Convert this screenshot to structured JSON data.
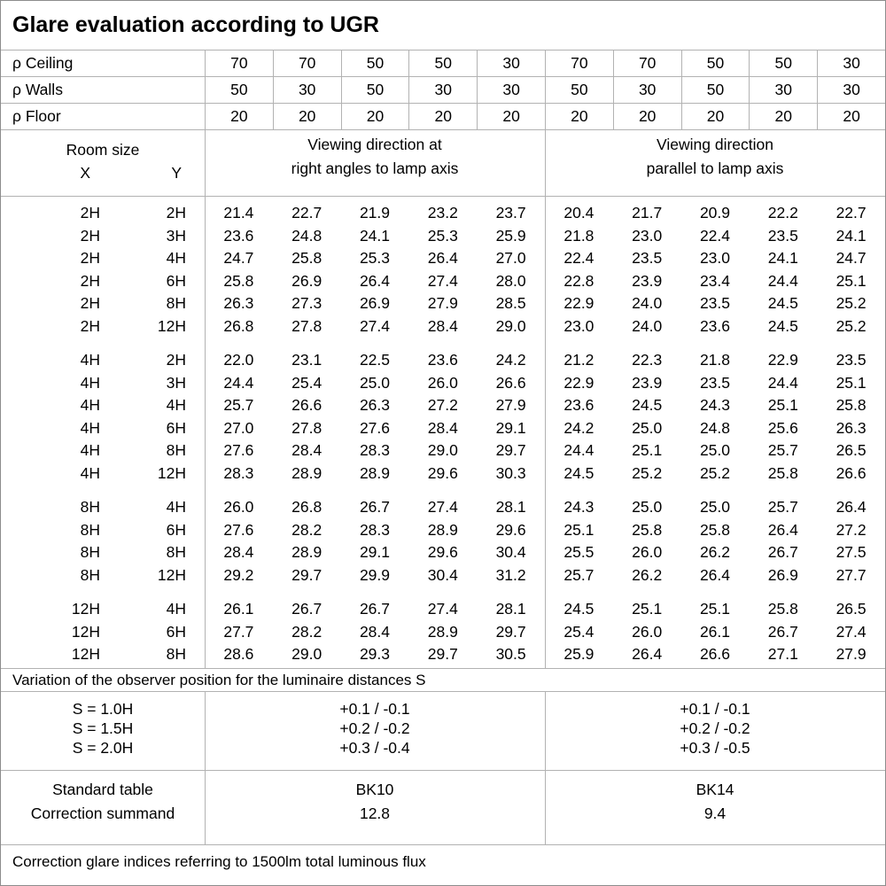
{
  "title": "Glare evaluation according to UGR",
  "reflectance_rows": [
    {
      "label": "ρ Ceiling",
      "values": [
        "70",
        "70",
        "50",
        "50",
        "30",
        "70",
        "70",
        "50",
        "50",
        "30"
      ]
    },
    {
      "label": "ρ Walls",
      "values": [
        "50",
        "30",
        "50",
        "30",
        "30",
        "50",
        "30",
        "50",
        "30",
        "30"
      ]
    },
    {
      "label": "ρ Floor",
      "values": [
        "20",
        "20",
        "20",
        "20",
        "20",
        "20",
        "20",
        "20",
        "20",
        "20"
      ]
    }
  ],
  "room_size_header": {
    "title": "Room size",
    "x": "X",
    "y": "Y"
  },
  "viewing_headers": {
    "right_angle": {
      "line1": "Viewing direction at",
      "line2": "right angles to lamp axis"
    },
    "parallel": {
      "line1": "Viewing direction",
      "line2": "parallel to lamp axis"
    }
  },
  "data_groups": [
    {
      "rows": [
        {
          "x": "2H",
          "y": "2H",
          "right_angle": [
            "21.4",
            "22.7",
            "21.9",
            "23.2",
            "23.7"
          ],
          "parallel": [
            "20.4",
            "21.7",
            "20.9",
            "22.2",
            "22.7"
          ]
        },
        {
          "x": "2H",
          "y": "3H",
          "right_angle": [
            "23.6",
            "24.8",
            "24.1",
            "25.3",
            "25.9"
          ],
          "parallel": [
            "21.8",
            "23.0",
            "22.4",
            "23.5",
            "24.1"
          ]
        },
        {
          "x": "2H",
          "y": "4H",
          "right_angle": [
            "24.7",
            "25.8",
            "25.3",
            "26.4",
            "27.0"
          ],
          "parallel": [
            "22.4",
            "23.5",
            "23.0",
            "24.1",
            "24.7"
          ]
        },
        {
          "x": "2H",
          "y": "6H",
          "right_angle": [
            "25.8",
            "26.9",
            "26.4",
            "27.4",
            "28.0"
          ],
          "parallel": [
            "22.8",
            "23.9",
            "23.4",
            "24.4",
            "25.1"
          ]
        },
        {
          "x": "2H",
          "y": "8H",
          "right_angle": [
            "26.3",
            "27.3",
            "26.9",
            "27.9",
            "28.5"
          ],
          "parallel": [
            "22.9",
            "24.0",
            "23.5",
            "24.5",
            "25.2"
          ]
        },
        {
          "x": "2H",
          "y": "12H",
          "right_angle": [
            "26.8",
            "27.8",
            "27.4",
            "28.4",
            "29.0"
          ],
          "parallel": [
            "23.0",
            "24.0",
            "23.6",
            "24.5",
            "25.2"
          ]
        }
      ]
    },
    {
      "rows": [
        {
          "x": "4H",
          "y": "2H",
          "right_angle": [
            "22.0",
            "23.1",
            "22.5",
            "23.6",
            "24.2"
          ],
          "parallel": [
            "21.2",
            "22.3",
            "21.8",
            "22.9",
            "23.5"
          ]
        },
        {
          "x": "4H",
          "y": "3H",
          "right_angle": [
            "24.4",
            "25.4",
            "25.0",
            "26.0",
            "26.6"
          ],
          "parallel": [
            "22.9",
            "23.9",
            "23.5",
            "24.4",
            "25.1"
          ]
        },
        {
          "x": "4H",
          "y": "4H",
          "right_angle": [
            "25.7",
            "26.6",
            "26.3",
            "27.2",
            "27.9"
          ],
          "parallel": [
            "23.6",
            "24.5",
            "24.3",
            "25.1",
            "25.8"
          ]
        },
        {
          "x": "4H",
          "y": "6H",
          "right_angle": [
            "27.0",
            "27.8",
            "27.6",
            "28.4",
            "29.1"
          ],
          "parallel": [
            "24.2",
            "25.0",
            "24.8",
            "25.6",
            "26.3"
          ]
        },
        {
          "x": "4H",
          "y": "8H",
          "right_angle": [
            "27.6",
            "28.4",
            "28.3",
            "29.0",
            "29.7"
          ],
          "parallel": [
            "24.4",
            "25.1",
            "25.0",
            "25.7",
            "26.5"
          ]
        },
        {
          "x": "4H",
          "y": "12H",
          "right_angle": [
            "28.3",
            "28.9",
            "28.9",
            "29.6",
            "30.3"
          ],
          "parallel": [
            "24.5",
            "25.2",
            "25.2",
            "25.8",
            "26.6"
          ]
        }
      ]
    },
    {
      "rows": [
        {
          "x": "8H",
          "y": "4H",
          "right_angle": [
            "26.0",
            "26.8",
            "26.7",
            "27.4",
            "28.1"
          ],
          "parallel": [
            "24.3",
            "25.0",
            "25.0",
            "25.7",
            "26.4"
          ]
        },
        {
          "x": "8H",
          "y": "6H",
          "right_angle": [
            "27.6",
            "28.2",
            "28.3",
            "28.9",
            "29.6"
          ],
          "parallel": [
            "25.1",
            "25.8",
            "25.8",
            "26.4",
            "27.2"
          ]
        },
        {
          "x": "8H",
          "y": "8H",
          "right_angle": [
            "28.4",
            "28.9",
            "29.1",
            "29.6",
            "30.4"
          ],
          "parallel": [
            "25.5",
            "26.0",
            "26.2",
            "26.7",
            "27.5"
          ]
        },
        {
          "x": "8H",
          "y": "12H",
          "right_angle": [
            "29.2",
            "29.7",
            "29.9",
            "30.4",
            "31.2"
          ],
          "parallel": [
            "25.7",
            "26.2",
            "26.4",
            "26.9",
            "27.7"
          ]
        }
      ]
    },
    {
      "rows": [
        {
          "x": "12H",
          "y": "4H",
          "right_angle": [
            "26.1",
            "26.7",
            "26.7",
            "27.4",
            "28.1"
          ],
          "parallel": [
            "24.5",
            "25.1",
            "25.1",
            "25.8",
            "26.5"
          ]
        },
        {
          "x": "12H",
          "y": "6H",
          "right_angle": [
            "27.7",
            "28.2",
            "28.4",
            "28.9",
            "29.7"
          ],
          "parallel": [
            "25.4",
            "26.0",
            "26.1",
            "26.7",
            "27.4"
          ]
        },
        {
          "x": "12H",
          "y": "8H",
          "right_angle": [
            "28.6",
            "29.0",
            "29.3",
            "29.7",
            "30.5"
          ],
          "parallel": [
            "25.9",
            "26.4",
            "26.6",
            "27.1",
            "27.9"
          ]
        }
      ]
    }
  ],
  "observer_variation": {
    "note": "Variation of the observer position for the luminaire distances S",
    "rows": [
      {
        "label": "S = 1.0H",
        "right_angle": "+0.1 / -0.1",
        "parallel": "+0.1 / -0.1"
      },
      {
        "label": "S = 1.5H",
        "right_angle": "+0.2 / -0.2",
        "parallel": "+0.2 / -0.2"
      },
      {
        "label": "S = 2.0H",
        "right_angle": "+0.3 / -0.4",
        "parallel": "+0.3 / -0.5"
      }
    ]
  },
  "standard_table": {
    "rows": [
      {
        "label": "Standard table",
        "right_angle": "BK10",
        "parallel": "BK14"
      },
      {
        "label": "Correction summand",
        "right_angle": "12.8",
        "parallel": "9.4"
      }
    ]
  },
  "footer": "Correction glare indices referring to 1500lm total luminous flux"
}
